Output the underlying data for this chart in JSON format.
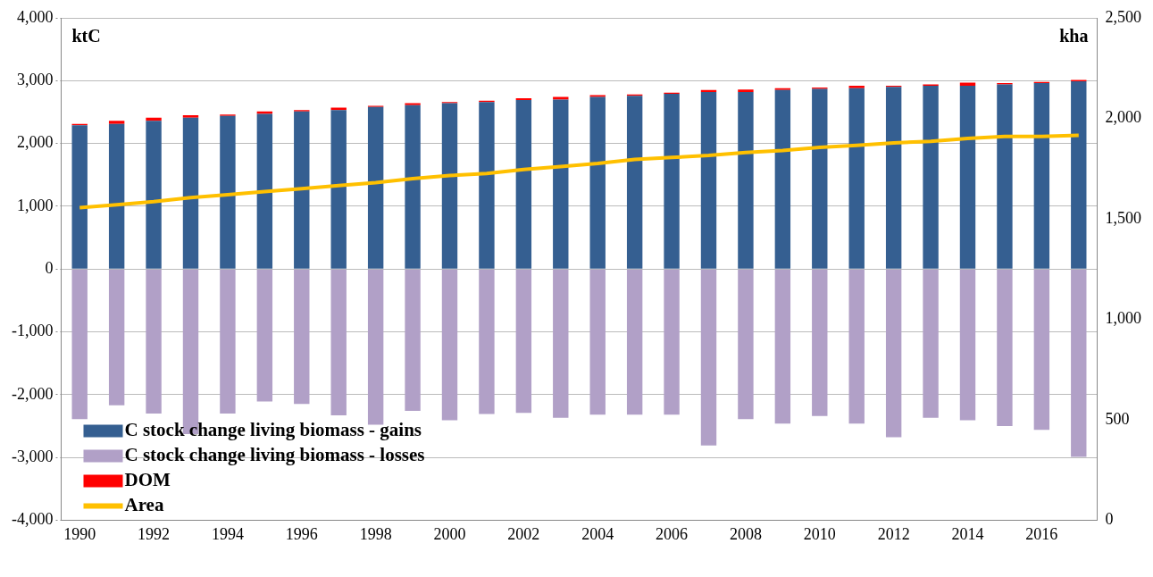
{
  "chart_data": {
    "type": "bar",
    "stacked": true,
    "ylabel": "ktC",
    "y2label": "kha",
    "categories": [
      "1990",
      null,
      "1992",
      null,
      "1994",
      null,
      "1996",
      null,
      "1998",
      null,
      "2000",
      null,
      "2002",
      null,
      "2004",
      null,
      "2006",
      null,
      "2008",
      null,
      "2010",
      null,
      "2012",
      null,
      "2014",
      null,
      "2016",
      null
    ],
    "series": [
      {
        "name": "C stock change living biomass - gains",
        "color": "#355f91",
        "values": [
          2290,
          2310,
          2360,
          2410,
          2440,
          2470,
          2510,
          2530,
          2580,
          2610,
          2640,
          2660,
          2690,
          2700,
          2740,
          2760,
          2790,
          2820,
          2820,
          2850,
          2870,
          2880,
          2900,
          2920,
          2920,
          2940,
          2960,
          2990
        ]
      },
      {
        "name": "C stock change living biomass - losses",
        "color": "#b1a0c7",
        "values": [
          -2390,
          -2170,
          -2300,
          -2630,
          -2300,
          -2110,
          -2150,
          -2330,
          -2480,
          -2260,
          -2410,
          -2310,
          -2290,
          -2370,
          -2320,
          -2320,
          -2320,
          -2810,
          -2390,
          -2460,
          -2340,
          -2460,
          -2680,
          -2370,
          -2410,
          -2500,
          -2560,
          -2990
        ]
      },
      {
        "name": "DOM",
        "color": "#ff0000",
        "values": [
          20,
          50,
          50,
          40,
          20,
          40,
          20,
          40,
          20,
          30,
          20,
          20,
          30,
          40,
          30,
          20,
          20,
          30,
          40,
          30,
          20,
          40,
          20,
          20,
          50,
          20,
          20,
          20
        ]
      },
      {
        "name": "Area",
        "type": "line",
        "axis": "y2",
        "color": "#ffc000",
        "values": [
          1555,
          1570,
          1585,
          1605,
          1620,
          1635,
          1650,
          1665,
          1680,
          1700,
          1715,
          1725,
          1745,
          1760,
          1775,
          1795,
          1805,
          1815,
          1830,
          1840,
          1855,
          1865,
          1878,
          1885,
          1900,
          1910,
          1910,
          1915
        ]
      }
    ],
    "ylim": [
      -4000,
      4000
    ],
    "yticks": [
      {
        "value": -4000,
        "label": "-4,000"
      },
      {
        "value": -3000,
        "label": "-3,000"
      },
      {
        "value": -2000,
        "label": "-2,000"
      },
      {
        "value": -1000,
        "label": "-1,000"
      },
      0,
      {
        "value": 1000,
        "label": "1,000"
      },
      {
        "value": 2000,
        "label": "2,000"
      },
      {
        "value": 3000,
        "label": "3,000"
      },
      {
        "value": 4000,
        "label": "4,000"
      }
    ],
    "y2lim": [
      0,
      2500
    ],
    "y2ticks": [
      0,
      500,
      {
        "value": 1000,
        "label": "1,000"
      },
      {
        "value": 1500,
        "label": "1,500"
      },
      {
        "value": 2000,
        "label": "2,000"
      },
      {
        "value": 2500,
        "label": "2,500"
      }
    ],
    "grid": "y",
    "legend": "bottom left",
    "marker": "none",
    "line_style": "solid"
  }
}
